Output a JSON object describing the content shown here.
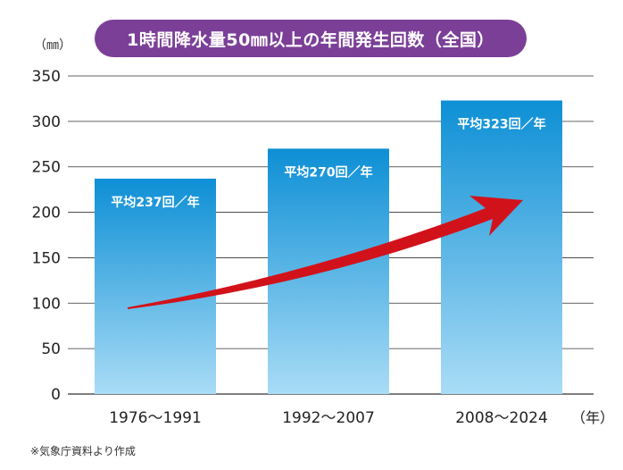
{
  "chart_data": {
    "type": "bar",
    "title": "1時間降水量50㎜以上の年間発生回数（全国）",
    "ylabel": "（㎜）",
    "xunit": "（年）",
    "ylim": [
      0,
      350
    ],
    "yticks": [
      0,
      50,
      100,
      150,
      200,
      250,
      300,
      350
    ],
    "grid": true,
    "categories": [
      "1976～1991",
      "1992～2007",
      "2008～2024"
    ],
    "values": [
      237,
      270,
      323
    ],
    "data_labels": [
      "平均237回／年",
      "平均270回／年",
      "平均323回／年"
    ],
    "annotations": [
      "upward-trend-arrow"
    ]
  },
  "colors": {
    "bar_top": "#0d8fd5",
    "bar_bottom": "#a9dcf6",
    "arrow": "#d2121b",
    "title_bg": "#7b3f98",
    "grid": "#333333"
  },
  "footnote": "※気象庁資料より作成"
}
